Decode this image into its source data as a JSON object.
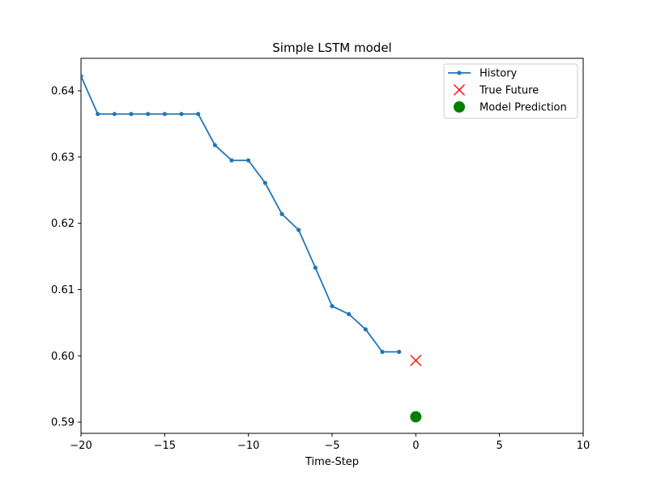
{
  "chart_data": {
    "type": "line",
    "title": "Simple LSTM model",
    "xlabel": "Time-Step",
    "ylabel": "",
    "xlim": [
      -20,
      10
    ],
    "ylim": [
      0.5883,
      0.6449
    ],
    "xticks": [
      -20,
      -15,
      -10,
      -5,
      0,
      5,
      10
    ],
    "xtick_labels": [
      "−20",
      "−15",
      "−10",
      "−5",
      "0",
      "5",
      "10"
    ],
    "yticks": [
      0.59,
      0.6,
      0.61,
      0.62,
      0.63,
      0.64
    ],
    "ytick_labels": [
      "0.59",
      "0.60",
      "0.61",
      "0.62",
      "0.63",
      "0.64"
    ],
    "grid": false,
    "legend_position": "top-right",
    "series": [
      {
        "name": "History",
        "kind": "line-with-markers",
        "color": "#1f77b4",
        "x": [
          -20,
          -19,
          -18,
          -17,
          -16,
          -15,
          -14,
          -13,
          -12,
          -11,
          -10,
          -9,
          -8,
          -7,
          -6,
          -5,
          -4,
          -3,
          -2,
          -1
        ],
        "y": [
          0.6422,
          0.6365,
          0.6365,
          0.6365,
          0.6365,
          0.6365,
          0.6365,
          0.6365,
          0.6318,
          0.6295,
          0.6295,
          0.6261,
          0.6214,
          0.619,
          0.6133,
          0.6075,
          0.6063,
          0.604,
          0.6006,
          0.6006
        ]
      },
      {
        "name": "True Future",
        "kind": "x-marker",
        "color": "#ff0000",
        "x": [
          0
        ],
        "y": [
          0.5993
        ]
      },
      {
        "name": "Model Prediction",
        "kind": "circle-marker",
        "color": "#008000",
        "x": [
          0
        ],
        "y": [
          0.5908
        ]
      }
    ]
  }
}
